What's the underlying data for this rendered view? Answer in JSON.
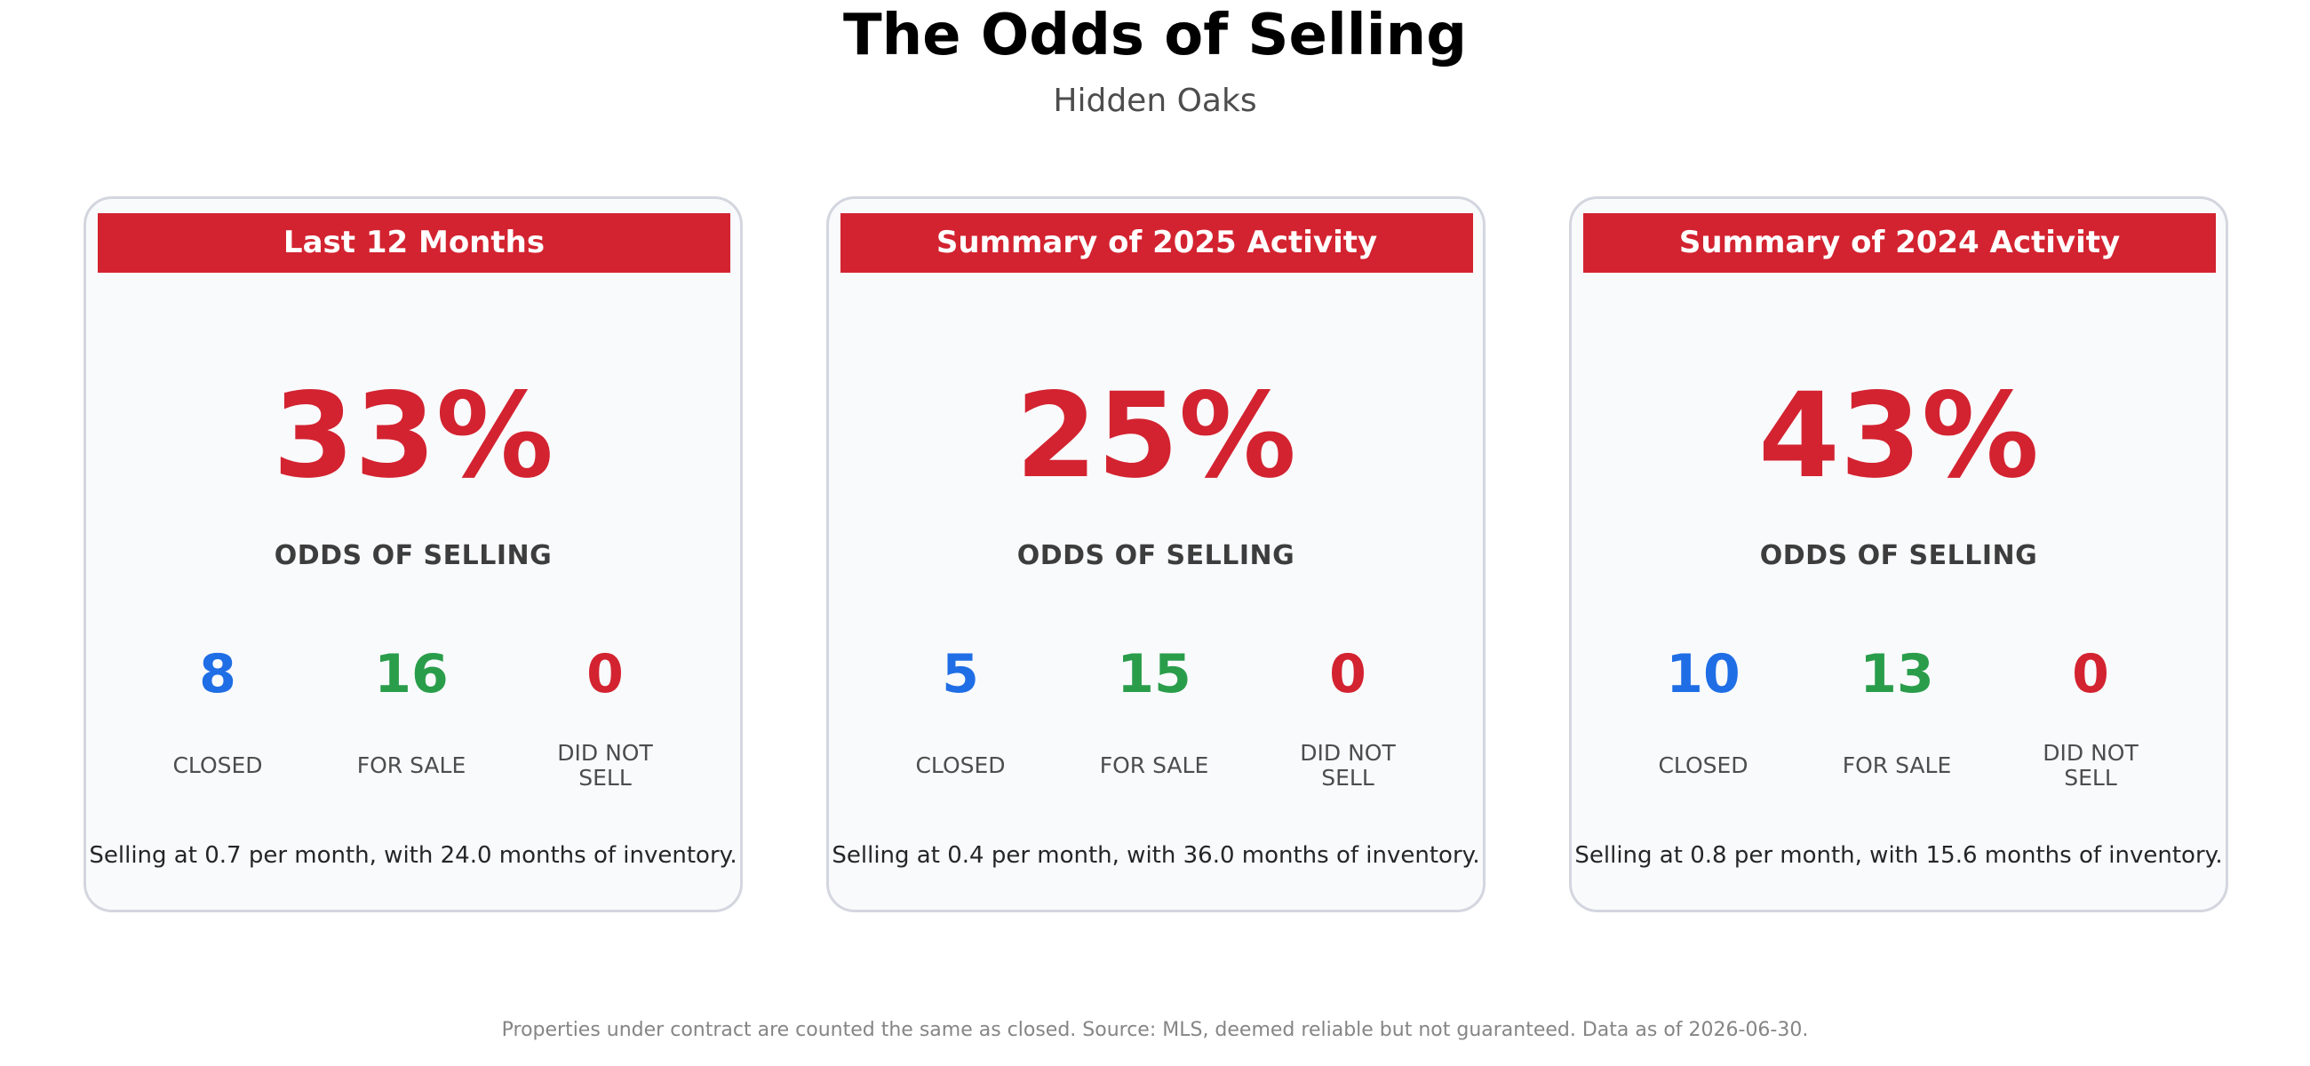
{
  "title": "The Odds of Selling",
  "subtitle": "Hidden Oaks",
  "colors": {
    "accent_red": "#d32330",
    "closed_blue": "#1f6ee5",
    "for_sale_green": "#2a9d4b",
    "did_not_sell_red": "#d32330",
    "card_background": "#f9fafc",
    "card_border": "#d3d6de"
  },
  "chart_data": {
    "type": "table",
    "panels": [
      {
        "header": "Last 12 Months",
        "odds_pct": 33,
        "odds_text": "33%",
        "odds_label": "ODDS OF SELLING",
        "stats": [
          {
            "label": "CLOSED",
            "value": 8
          },
          {
            "label": "FOR SALE",
            "value": 16
          },
          {
            "label": "DID NOT SELL",
            "value": 0
          }
        ],
        "summary": "Selling at 0.7 per month, with 24.0 months of inventory."
      },
      {
        "header": "Summary of 2025 Activity",
        "odds_pct": 25,
        "odds_text": "25%",
        "odds_label": "ODDS OF SELLING",
        "stats": [
          {
            "label": "CLOSED",
            "value": 5
          },
          {
            "label": "FOR SALE",
            "value": 15
          },
          {
            "label": "DID NOT SELL",
            "value": 0
          }
        ],
        "summary": "Selling at 0.4 per month, with 36.0 months of inventory."
      },
      {
        "header": "Summary of 2024 Activity",
        "odds_pct": 43,
        "odds_text": "43%",
        "odds_label": "ODDS OF SELLING",
        "stats": [
          {
            "label": "CLOSED",
            "value": 10
          },
          {
            "label": "FOR SALE",
            "value": 13
          },
          {
            "label": "DID NOT SELL",
            "value": 0
          }
        ],
        "summary": "Selling at 0.8 per month, with 15.6 months of inventory."
      }
    ]
  },
  "footnote": "Properties under contract are counted the same as closed. Source: MLS, deemed reliable but not guaranteed. Data as of 2026-06-30."
}
